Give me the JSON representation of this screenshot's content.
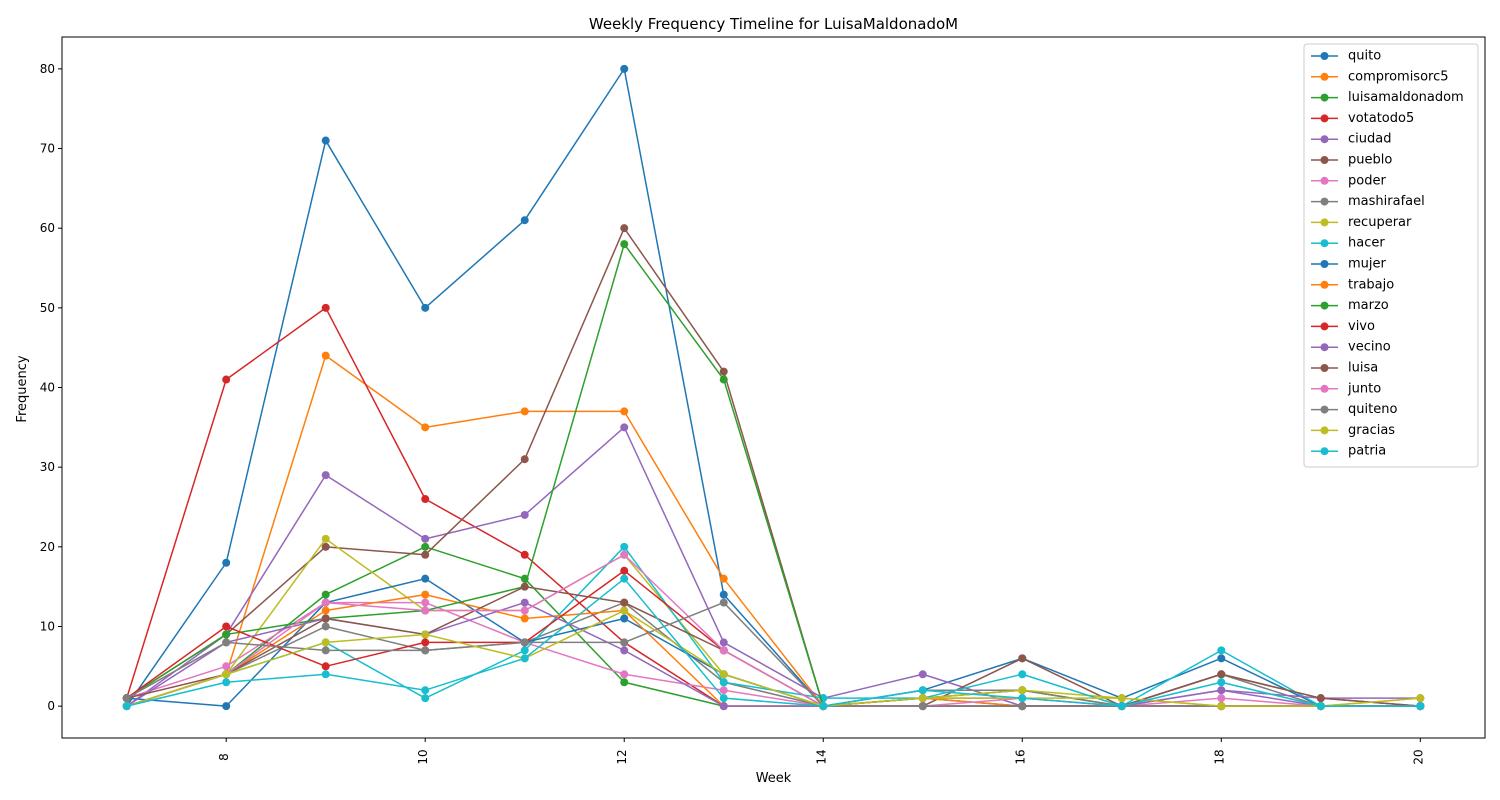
{
  "chart_data": {
    "type": "line",
    "title": "Weekly Frequency Timeline for LuisaMaldonadoM",
    "xlabel": "Week",
    "ylabel": "Frequency",
    "x": [
      7,
      8,
      9,
      10,
      11,
      12,
      13,
      14,
      15,
      16,
      17,
      18,
      19,
      20
    ],
    "xlim": [
      6.35,
      20.65
    ],
    "ylim": [
      -4,
      84
    ],
    "xticks": [
      8,
      10,
      12,
      14,
      16,
      18,
      20
    ],
    "yticks": [
      0,
      10,
      20,
      30,
      40,
      50,
      60,
      70,
      80
    ],
    "x_tick_rotation": 90,
    "grid": false,
    "legend_position": "top-right",
    "series": [
      {
        "name": "quito",
        "color": "#1f77b4",
        "values": [
          0,
          18,
          71,
          50,
          61,
          80,
          14,
          0,
          2,
          6,
          1,
          6,
          0,
          0
        ]
      },
      {
        "name": "compromisorc5",
        "color": "#ff7f0e",
        "values": [
          0,
          4,
          44,
          35,
          37,
          37,
          16,
          0,
          1,
          2,
          0,
          0,
          0,
          0
        ]
      },
      {
        "name": "luisamaldonadom",
        "color": "#2ca02c",
        "values": [
          0,
          4,
          14,
          20,
          16,
          3,
          0,
          0,
          1,
          2,
          0,
          0,
          0,
          0
        ]
      },
      {
        "name": "votatodo5",
        "color": "#d62728",
        "values": [
          1,
          41,
          50,
          26,
          19,
          8,
          0,
          0,
          0,
          0,
          0,
          0,
          0,
          0
        ]
      },
      {
        "name": "ciudad",
        "color": "#9467bd",
        "values": [
          0,
          9,
          29,
          21,
          24,
          35,
          8,
          1,
          4,
          0,
          0,
          2,
          0,
          0
        ]
      },
      {
        "name": "pueblo",
        "color": "#8c564b",
        "values": [
          1,
          9,
          20,
          19,
          31,
          60,
          42,
          0,
          0,
          6,
          0,
          4,
          1,
          0
        ]
      },
      {
        "name": "poder",
        "color": "#e377c2",
        "values": [
          1,
          5,
          13,
          13,
          8,
          4,
          2,
          0,
          1,
          1,
          0,
          1,
          0,
          0
        ]
      },
      {
        "name": "mashirafael",
        "color": "#7f7f7f",
        "values": [
          0,
          4,
          10,
          7,
          8,
          13,
          3,
          0,
          2,
          2,
          0,
          4,
          0,
          0
        ]
      },
      {
        "name": "recuperar",
        "color": "#bcbd22",
        "values": [
          0,
          4,
          21,
          12,
          12,
          19,
          4,
          0,
          1,
          2,
          1,
          0,
          0,
          1
        ]
      },
      {
        "name": "hacer",
        "color": "#17becf",
        "values": [
          0,
          4,
          8,
          1,
          7,
          20,
          3,
          1,
          1,
          4,
          0,
          7,
          0,
          0
        ]
      },
      {
        "name": "mujer",
        "color": "#1f77b4",
        "values": [
          1,
          0,
          13,
          16,
          8,
          11,
          4,
          0,
          1,
          0,
          0,
          0,
          0,
          0
        ]
      },
      {
        "name": "trabajo",
        "color": "#ff7f0e",
        "values": [
          0,
          4,
          12,
          14,
          11,
          12,
          0,
          0,
          1,
          0,
          0,
          0,
          0,
          0
        ]
      },
      {
        "name": "marzo",
        "color": "#2ca02c",
        "values": [
          1,
          9,
          11,
          12,
          15,
          58,
          41,
          0,
          0,
          0,
          0,
          0,
          0,
          0
        ]
      },
      {
        "name": "vivo",
        "color": "#d62728",
        "values": [
          1,
          10,
          5,
          8,
          8,
          17,
          7,
          0,
          0,
          0,
          0,
          0,
          0,
          0
        ]
      },
      {
        "name": "vecino",
        "color": "#9467bd",
        "values": [
          0,
          8,
          11,
          9,
          13,
          7,
          0,
          0,
          0,
          0,
          0,
          2,
          1,
          1
        ]
      },
      {
        "name": "luisa",
        "color": "#8c564b",
        "values": [
          1,
          4,
          11,
          9,
          15,
          13,
          7,
          0,
          0,
          0,
          0,
          4,
          1,
          0
        ]
      },
      {
        "name": "junto",
        "color": "#e377c2",
        "values": [
          0,
          4,
          13,
          12,
          12,
          19,
          7,
          0,
          0,
          1,
          0,
          0,
          0,
          0
        ]
      },
      {
        "name": "quiteno",
        "color": "#7f7f7f",
        "values": [
          1,
          8,
          7,
          7,
          8,
          8,
          13,
          0,
          0,
          0,
          0,
          0,
          0,
          0
        ]
      },
      {
        "name": "gracias",
        "color": "#bcbd22",
        "values": [
          0,
          4,
          8,
          9,
          6,
          12,
          4,
          0,
          1,
          1,
          1,
          0,
          0,
          1
        ]
      },
      {
        "name": "patria",
        "color": "#17becf",
        "values": [
          0,
          3,
          4,
          2,
          6,
          16,
          1,
          0,
          2,
          1,
          0,
          3,
          0,
          0
        ]
      }
    ]
  }
}
